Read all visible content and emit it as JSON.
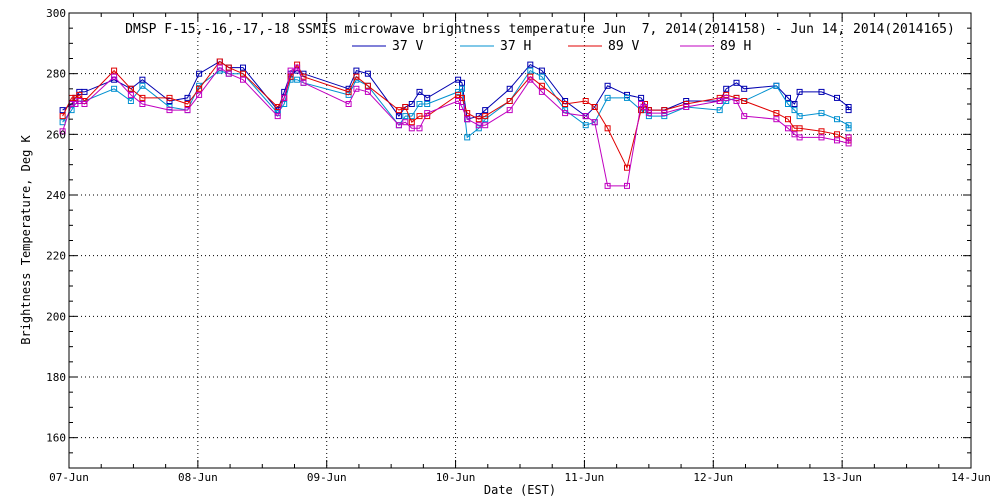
{
  "chart_data": {
    "type": "line",
    "title": "DMSP F-15,-16,-17,-18 SSMIS microwave brightness temperature Jun  7, 2014(2014158) - Jun 14, 2014(2014165)",
    "xlabel": "Date (EST)",
    "ylabel": "Brightness Temperature, Deg K",
    "x_range": [
      "2014-06-07",
      "2014-06-14"
    ],
    "x_ticks": [
      "07-Jun",
      "08-Jun",
      "09-Jun",
      "10-Jun",
      "11-Jun",
      "12-Jun",
      "13-Jun",
      "14-Jun"
    ],
    "ylim": [
      150,
      300
    ],
    "y_ticks": [
      160,
      180,
      200,
      220,
      240,
      260,
      280,
      300
    ],
    "grid": true,
    "legend_position": "top",
    "series": [
      {
        "name": "37 V",
        "color": "#0000b0",
        "x": [
          6.95,
          7.02,
          7.05,
          7.08,
          7.12,
          7.35,
          7.48,
          7.57,
          7.78,
          7.92,
          8.01,
          8.17,
          8.24,
          8.35,
          8.62,
          8.67,
          8.72,
          8.77,
          8.82,
          9.17,
          9.23,
          9.32,
          9.56,
          9.61,
          9.66,
          9.72,
          9.78,
          10.02,
          10.05,
          10.09,
          10.18,
          10.23,
          10.42,
          10.58,
          10.67,
          10.85,
          11.01,
          11.08,
          11.18,
          11.33,
          11.44,
          11.47,
          11.5,
          11.62,
          11.79,
          12.05,
          12.1,
          12.18,
          12.24,
          12.49,
          12.58,
          12.63,
          12.67,
          12.84,
          12.96,
          13.05,
          13.05
        ],
        "y": [
          268,
          270,
          272,
          274,
          274,
          278,
          275,
          278,
          271,
          272,
          280,
          284,
          282,
          282,
          268,
          274,
          280,
          281,
          280,
          275,
          281,
          280,
          266,
          269,
          270,
          274,
          272,
          278,
          277,
          265,
          266,
          268,
          275,
          283,
          281,
          271,
          266,
          269,
          276,
          273,
          272,
          270,
          268,
          268,
          271,
          271,
          275,
          277,
          275,
          276,
          272,
          270,
          274,
          274,
          272,
          269,
          268
        ]
      },
      {
        "name": "37 H",
        "color": "#0090d0",
        "x": [
          6.95,
          7.02,
          7.05,
          7.08,
          7.12,
          7.35,
          7.48,
          7.57,
          7.78,
          7.92,
          8.01,
          8.17,
          8.24,
          8.35,
          8.62,
          8.67,
          8.72,
          8.77,
          8.82,
          9.17,
          9.23,
          9.32,
          9.56,
          9.61,
          9.66,
          9.72,
          9.78,
          10.02,
          10.05,
          10.09,
          10.18,
          10.23,
          10.42,
          10.58,
          10.67,
          10.85,
          11.01,
          11.08,
          11.18,
          11.33,
          11.44,
          11.47,
          11.5,
          11.62,
          11.79,
          12.05,
          12.1,
          12.18,
          12.24,
          12.49,
          12.58,
          12.63,
          12.67,
          12.84,
          12.96,
          13.05,
          13.05
        ],
        "y": [
          264,
          268,
          270,
          271,
          271,
          275,
          271,
          276,
          269,
          268,
          276,
          281,
          280,
          280,
          267,
          270,
          278,
          278,
          277,
          273,
          278,
          276,
          263,
          266,
          266,
          270,
          270,
          274,
          275,
          259,
          262,
          265,
          271,
          281,
          279,
          268,
          263,
          264,
          272,
          272,
          268,
          268,
          266,
          266,
          269,
          268,
          271,
          272,
          271,
          276,
          270,
          268,
          266,
          267,
          265,
          263,
          262
        ]
      },
      {
        "name": "89 V",
        "color": "#e00000",
        "x": [
          6.95,
          7.02,
          7.05,
          7.08,
          7.12,
          7.35,
          7.48,
          7.57,
          7.78,
          7.92,
          8.01,
          8.17,
          8.24,
          8.35,
          8.62,
          8.67,
          8.72,
          8.77,
          8.82,
          9.17,
          9.23,
          9.32,
          9.56,
          9.61,
          9.66,
          9.72,
          9.78,
          10.02,
          10.05,
          10.09,
          10.18,
          10.23,
          10.42,
          10.58,
          10.67,
          10.85,
          11.01,
          11.08,
          11.18,
          11.33,
          11.44,
          11.47,
          11.5,
          11.62,
          11.79,
          12.05,
          12.1,
          12.18,
          12.24,
          12.49,
          12.58,
          12.63,
          12.67,
          12.84,
          12.96,
          13.05,
          13.05
        ],
        "y": [
          266,
          272,
          272,
          273,
          271,
          281,
          275,
          272,
          272,
          270,
          275,
          284,
          282,
          280,
          269,
          272,
          279,
          283,
          279,
          274,
          279,
          276,
          268,
          269,
          264,
          266,
          266,
          273,
          272,
          267,
          265,
          266,
          271,
          279,
          276,
          270,
          271,
          269,
          262,
          249,
          268,
          270,
          268,
          268,
          270,
          272,
          273,
          272,
          271,
          267,
          265,
          262,
          262,
          261,
          260,
          258,
          259
        ]
      },
      {
        "name": "89 H",
        "color": "#c000c0",
        "x": [
          6.95,
          7.02,
          7.05,
          7.08,
          7.12,
          7.35,
          7.48,
          7.57,
          7.78,
          7.92,
          8.01,
          8.17,
          8.24,
          8.35,
          8.62,
          8.67,
          8.72,
          8.77,
          8.82,
          9.17,
          9.23,
          9.32,
          9.56,
          9.61,
          9.66,
          9.72,
          9.78,
          10.02,
          10.05,
          10.09,
          10.18,
          10.23,
          10.42,
          10.58,
          10.67,
          10.85,
          11.01,
          11.08,
          11.18,
          11.33,
          11.44,
          11.47,
          11.5,
          11.62,
          11.79,
          12.05,
          12.1,
          12.18,
          12.24,
          12.49,
          12.58,
          12.63,
          12.67,
          12.84,
          12.96,
          13.05,
          13.05
        ],
        "y": [
          261,
          270,
          270,
          271,
          270,
          279,
          273,
          270,
          268,
          268,
          273,
          282,
          280,
          278,
          266,
          272,
          281,
          282,
          277,
          270,
          275,
          274,
          263,
          264,
          262,
          262,
          267,
          271,
          269,
          265,
          263,
          263,
          268,
          278,
          274,
          267,
          266,
          264,
          243,
          243,
          270,
          269,
          267,
          267,
          269,
          271,
          272,
          271,
          266,
          265,
          262,
          260,
          259,
          259,
          258,
          257,
          259
        ]
      }
    ]
  }
}
